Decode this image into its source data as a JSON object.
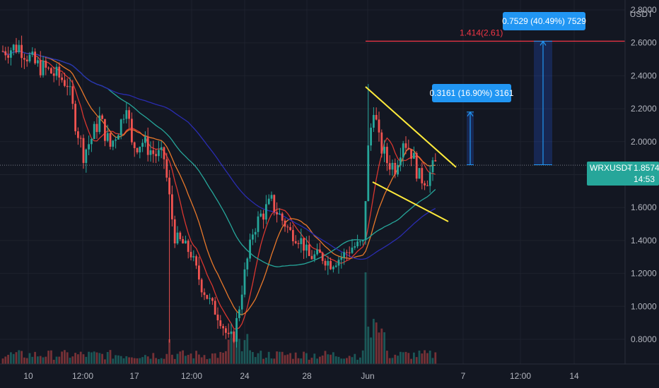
{
  "chart_data": {
    "type": "candlestick",
    "symbol": "WRXUSDT",
    "currency": "USDT",
    "last_price": "1.8574",
    "countdown": "14:53",
    "ylim": [
      0.65,
      2.86
    ],
    "y_ticks": [
      "2.8000",
      "2.6000",
      "2.4000",
      "2.2000",
      "2.0000",
      "1.8000",
      "1.6000",
      "1.4000",
      "1.2000",
      "1.0000",
      "0.8000"
    ],
    "y_tick_values": [
      2.8,
      2.6,
      2.4,
      2.2,
      2.0,
      1.8,
      1.6,
      1.4,
      1.2,
      1.0,
      0.8
    ],
    "x_ticks": [
      "10",
      "12:00",
      "17",
      "12:00",
      "24",
      "28",
      "Jun",
      "7",
      "12:00",
      "14"
    ],
    "annotations": {
      "target_line_label": "1.414(2.61)",
      "target_line_value": 2.61,
      "measure_small": {
        "label": "0.3161 (16.90%) 3161",
        "from": 1.86,
        "to": 2.18
      },
      "measure_large": {
        "label": "0.7529 (40.49%) 7529",
        "from": 1.86,
        "to": 2.61
      }
    },
    "colors": {
      "up": "#26a69a",
      "down": "#ef5350",
      "ma_teal": "#26a69a",
      "ma_navy": "#2a2cb0",
      "ma_orange": "#e8782a",
      "ma_red": "#d9362f",
      "trendline": "#ffeb3b",
      "target": "#f23645",
      "measure": "#2962ff",
      "label_bg": "#2196f3"
    }
  }
}
